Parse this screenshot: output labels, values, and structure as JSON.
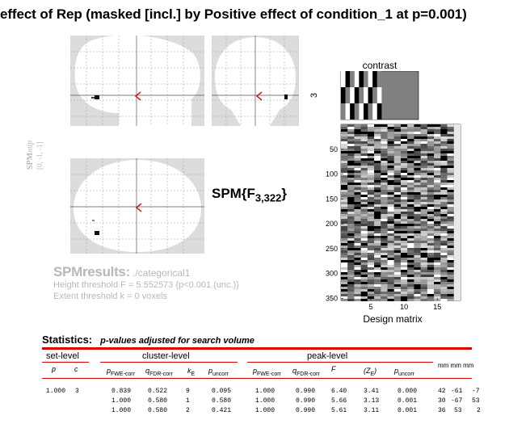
{
  "title": "effect of Rep (masked [incl.] by Positive effect of condition_1 at p=0.001)",
  "mip_label": {
    "main": "SPM",
    "sub": "mip",
    "coords": "[0, -1, -1]"
  },
  "spm_stat": {
    "prefix": "SPM{F",
    "subscript": "3,322",
    "suffix": "}"
  },
  "results": {
    "heading": "SPMresults:",
    "path": "./categorical1",
    "height_threshold": "Height threshold F = 5.552573  {p<0.001 (unc.)}",
    "extent_threshold": "Extent threshold k = 0 voxels"
  },
  "design": {
    "contrast_title": "contrast",
    "contrast_ytick": "3",
    "xlabel": "Design matrix",
    "yticks": [
      "50",
      "100",
      "150",
      "200",
      "250",
      "300",
      "350"
    ],
    "xticks": [
      "5",
      "10",
      "15"
    ]
  },
  "statistics": {
    "heading": "Statistics:",
    "subheading": "p-values adjusted for search volume",
    "groups": [
      "set-level",
      "cluster-level",
      "peak-level"
    ],
    "mm_header": "mm mm mm",
    "set_cols": [
      "p",
      "c"
    ],
    "cluster_cols": [
      {
        "main": "p",
        "sub": "FWE-corr"
      },
      {
        "main": "q",
        "sub": "FDR-corr"
      },
      {
        "main": "k",
        "sub": "E"
      },
      {
        "main": "p",
        "sub": "uncorr"
      }
    ],
    "peak_cols": [
      {
        "main": "p",
        "sub": "FWE-corr"
      },
      {
        "main": "q",
        "sub": "FDR-corr"
      },
      {
        "main": "F",
        "sub": ""
      },
      {
        "main": "(Z",
        "sub": "E",
        "tail": ")"
      },
      {
        "main": "p",
        "sub": "uncorr"
      }
    ],
    "rows": [
      {
        "set_p": "1.000",
        "set_c": "3",
        "c_pfwe": "0.839",
        "c_qfdr": "0.522",
        "c_k": "9",
        "c_punc": "0.095",
        "p_pfwe": "1.000",
        "p_qfdr": "0.990",
        "p_f": "6.40",
        "p_z": "3.41",
        "p_punc": "0.000",
        "mm": [
          "42",
          "-61",
          "-7"
        ]
      },
      {
        "set_p": "",
        "set_c": "",
        "c_pfwe": "1.000",
        "c_qfdr": "0.580",
        "c_k": "1",
        "c_punc": "0.580",
        "p_pfwe": "1.000",
        "p_qfdr": "0.990",
        "p_f": "5.66",
        "p_z": "3.13",
        "p_punc": "0.001",
        "mm": [
          "30",
          "-67",
          "53"
        ]
      },
      {
        "set_p": "",
        "set_c": "",
        "c_pfwe": "1.000",
        "c_qfdr": "0.580",
        "c_k": "2",
        "c_punc": "0.421",
        "p_pfwe": "1.000",
        "p_qfdr": "0.990",
        "p_f": "5.61",
        "p_z": "3.11",
        "p_punc": "0.001",
        "mm": [
          "36",
          "53",
          "2"
        ]
      }
    ]
  },
  "colors": {
    "accent": "#d60000",
    "mip_grey": "#dcdcdc",
    "threshold_text": "#b8b8b8"
  }
}
